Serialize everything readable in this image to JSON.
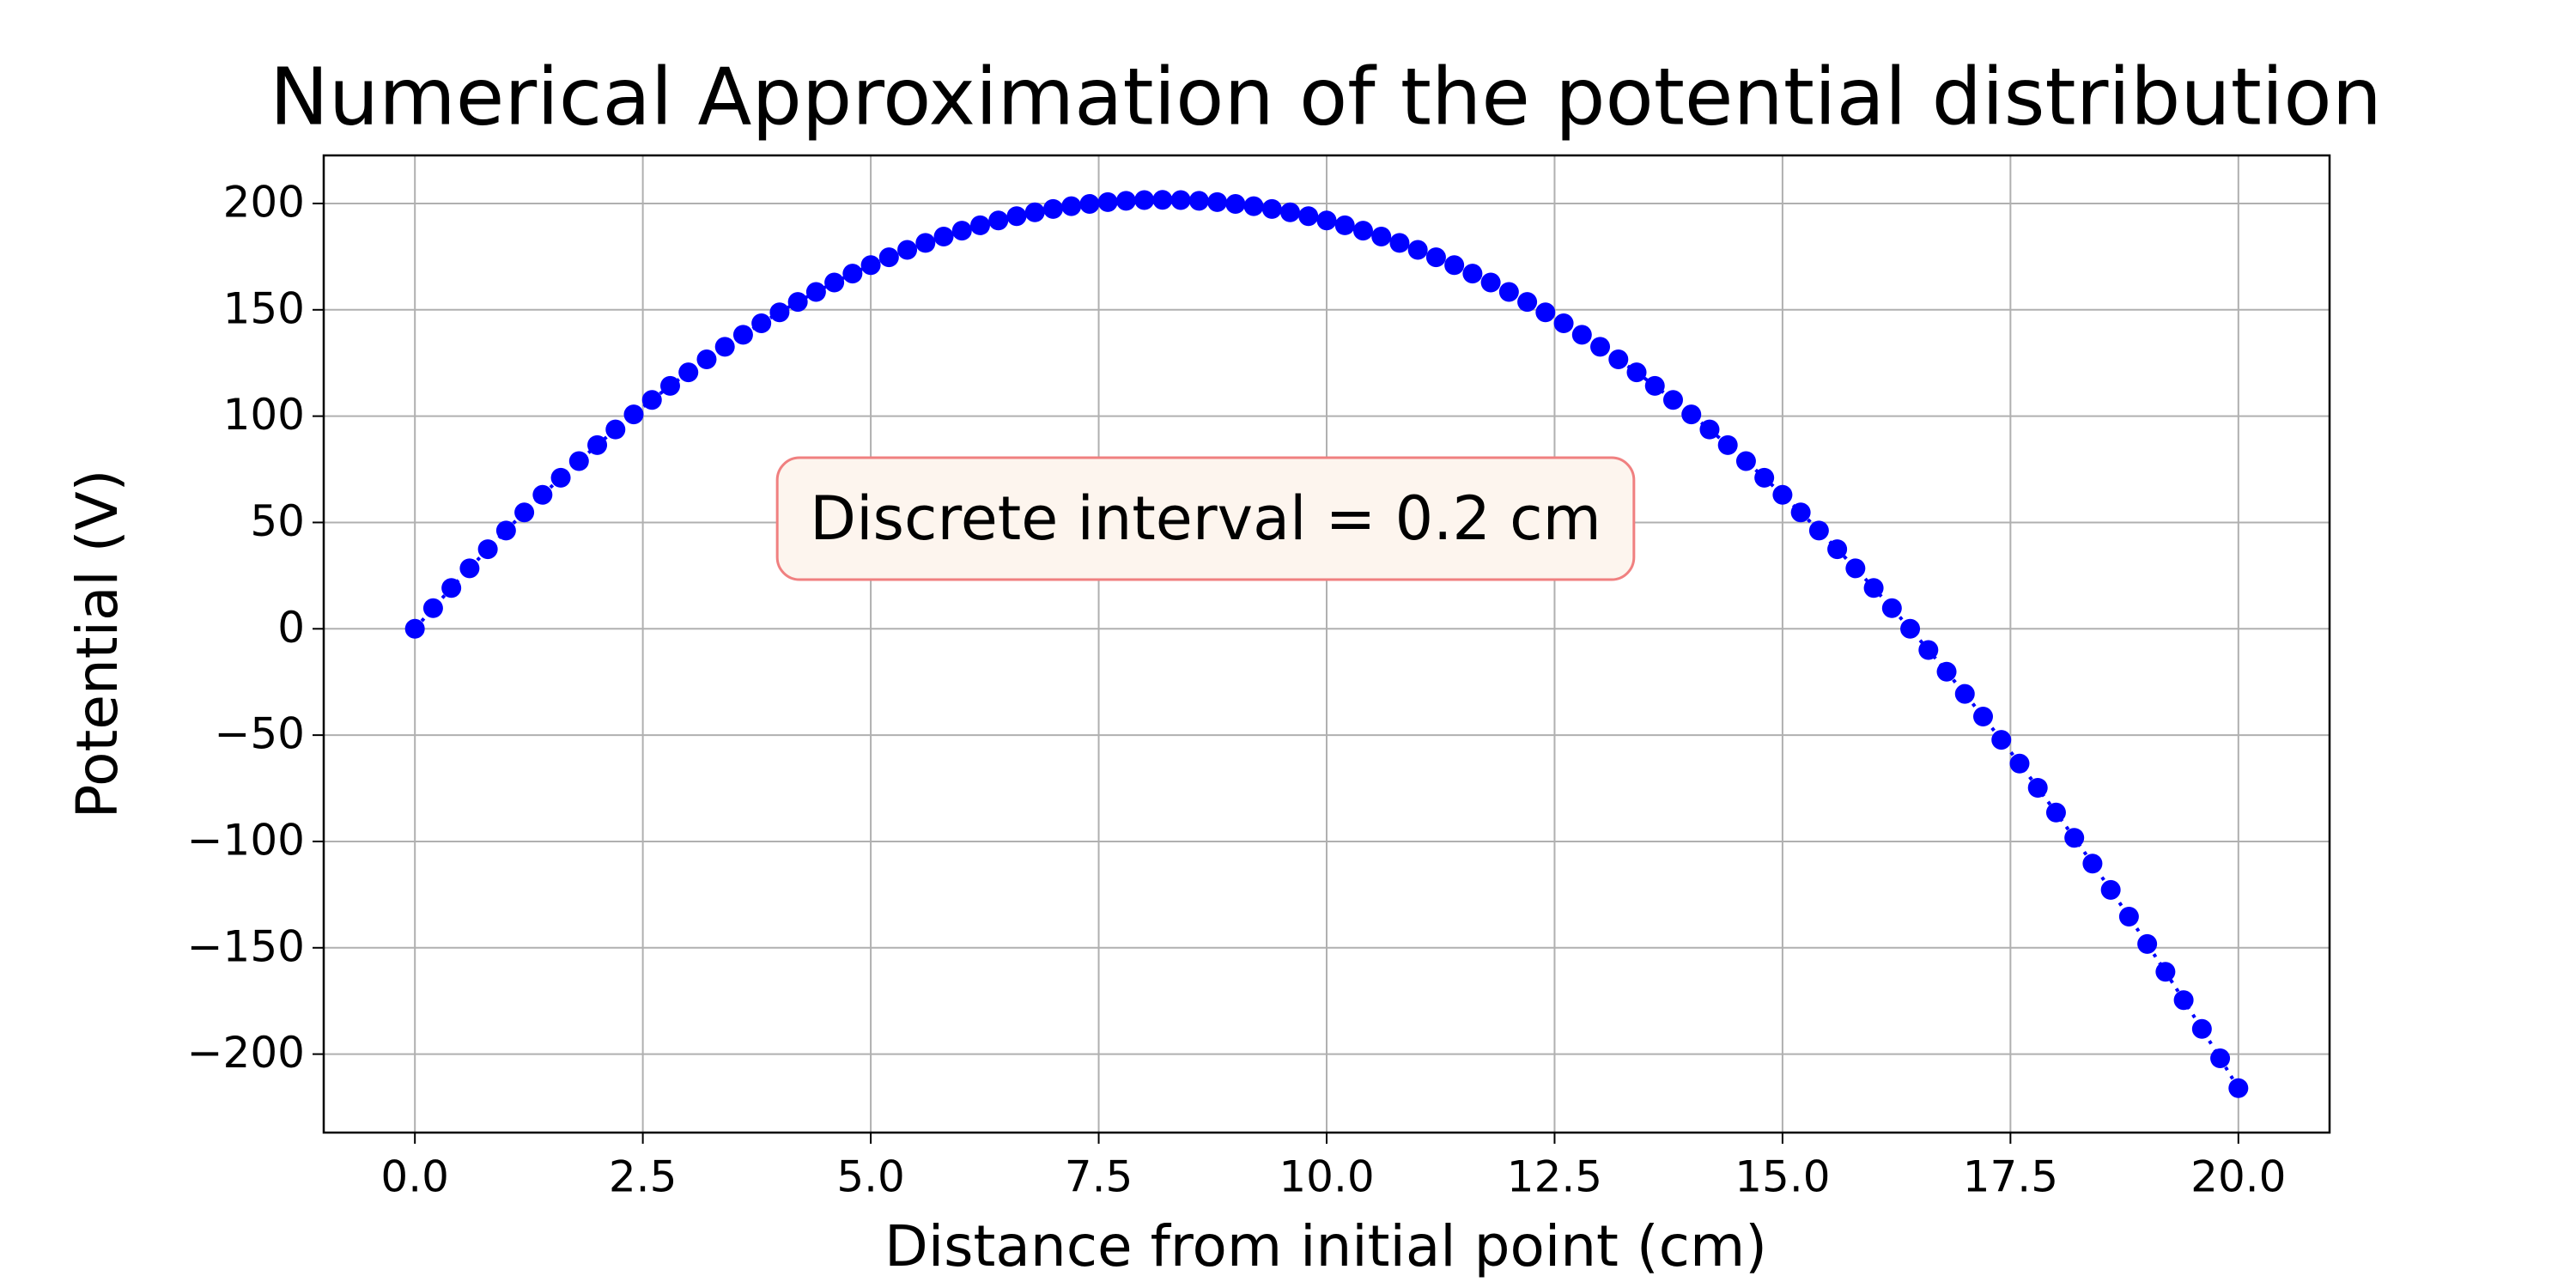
{
  "chart_data": {
    "type": "line",
    "title": "Numerical Approximation of the potential distribution",
    "xlabel": "Distance from initial point (cm)",
    "ylabel": "Potential (V)",
    "annotation": "Discrete interval = 0.2 cm",
    "x": [
      0,
      0.2,
      0.4,
      0.6,
      0.8,
      1,
      1.2,
      1.4,
      1.6,
      1.8,
      2,
      2.2,
      2.4,
      2.6,
      2.8,
      3,
      3.2,
      3.4,
      3.6,
      3.8,
      4,
      4.2,
      4.4,
      4.6,
      4.8,
      5,
      5.2,
      5.4,
      5.6,
      5.8,
      6,
      6.2,
      6.4,
      6.6,
      6.8,
      7,
      7.2,
      7.4,
      7.6,
      7.8,
      8,
      8.2,
      8.4,
      8.6,
      8.8,
      9,
      9.2,
      9.4,
      9.6,
      9.8,
      10,
      10.2,
      10.4,
      10.6,
      10.8,
      11,
      11.2,
      11.4,
      11.6,
      11.8,
      12,
      12.2,
      12.4,
      12.6,
      12.8,
      13,
      13.2,
      13.4,
      13.6,
      13.8,
      14,
      14.2,
      14.4,
      14.6,
      14.8,
      15,
      15.2,
      15.4,
      15.6,
      15.8,
      16,
      16.2,
      16.4,
      16.6,
      16.8,
      17,
      17.2,
      17.4,
      17.6,
      17.8,
      18,
      18.2,
      18.4,
      18.6,
      18.8,
      19,
      19.2,
      19.4,
      19.6,
      19.8,
      20
    ],
    "series": [
      {
        "color": "#0000ff",
        "values": [
          0,
          9.72,
          19.2,
          28.44,
          37.44,
          46.2,
          54.72,
          63,
          71.04,
          78.84,
          86.4,
          93.72,
          100.8,
          107.64,
          114.24,
          120.6,
          126.72,
          132.6,
          138.24,
          143.64,
          148.8,
          153.72,
          158.4,
          162.84,
          167.04,
          171,
          174.72,
          178.2,
          181.44,
          184.44,
          187.2,
          189.72,
          192,
          194.04,
          195.84,
          197.4,
          198.72,
          199.8,
          200.64,
          201.24,
          201.6,
          201.72,
          201.6,
          201.24,
          200.64,
          199.8,
          198.72,
          197.4,
          195.84,
          194.04,
          192,
          189.72,
          187.2,
          184.44,
          181.44,
          178.2,
          174.72,
          171,
          167.04,
          162.84,
          158.4,
          153.72,
          148.8,
          143.64,
          138.24,
          132.6,
          126.72,
          120.6,
          114.24,
          107.64,
          100.8,
          93.72,
          86.4,
          78.84,
          71.04,
          63,
          54.72,
          46.2,
          37.44,
          28.44,
          19.2,
          9.72,
          0,
          -9.96,
          -20.16,
          -30.6,
          -41.28,
          -52.2,
          -63.36,
          -74.76,
          -86.4,
          -98.28,
          -110.4,
          -122.76,
          -135.36,
          -148.2,
          -161.28,
          -174.6,
          -188.16,
          -201.96,
          -216
        ]
      }
    ],
    "xlim": [
      -1,
      21
    ],
    "ylim": [
      -236.9,
      222.6
    ],
    "xticks": [
      {
        "value": 0,
        "label": "0.0"
      },
      2.5,
      {
        "value": 5,
        "label": "5.0"
      },
      7.5,
      {
        "value": 10,
        "label": "10.0"
      },
      12.5,
      {
        "value": 15,
        "label": "15.0"
      },
      17.5,
      {
        "value": 20,
        "label": "20.0"
      }
    ],
    "yticks": [
      {
        "value": -200,
        "label": "−200"
      },
      {
        "value": -150,
        "label": "−150"
      },
      {
        "value": -100,
        "label": "−100"
      },
      {
        "value": -50,
        "label": "−50"
      },
      0,
      50,
      100,
      150,
      200
    ],
    "grid": true
  }
}
